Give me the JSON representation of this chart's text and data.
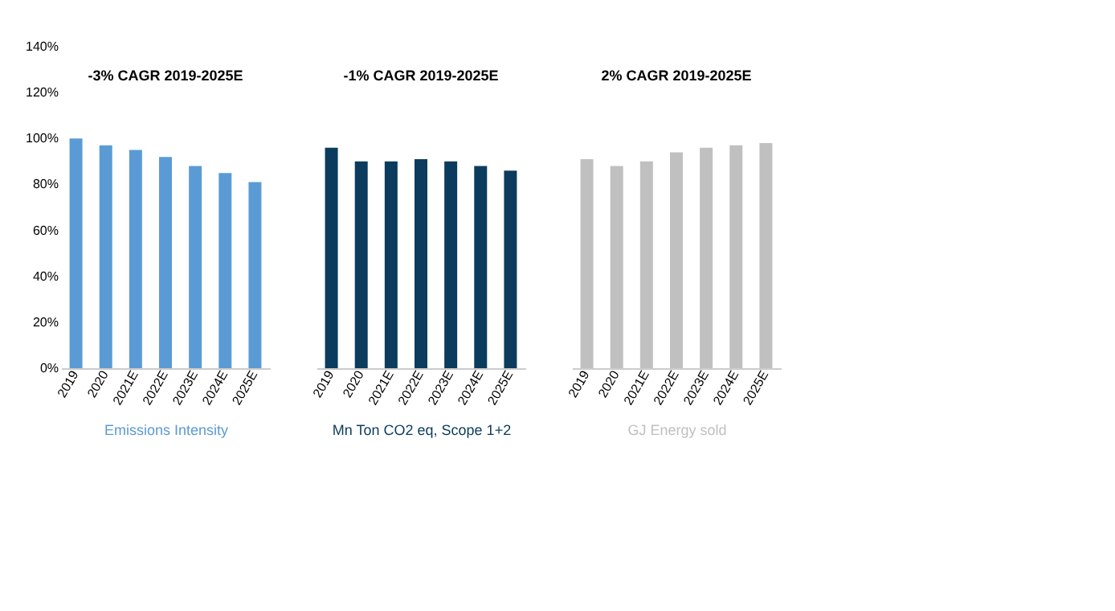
{
  "chart_data": [
    {
      "type": "bar",
      "xlabel": "Emissions Intensity",
      "annotations": [
        "-3% CAGR 2019-2025E"
      ],
      "categories": [
        "2019",
        "2020",
        "2021E",
        "2022E",
        "2023E",
        "2024E",
        "2025E"
      ],
      "series": [
        {
          "color": "#5b9bd5",
          "values": [
            100,
            97,
            95,
            92,
            88,
            85,
            81
          ]
        }
      ],
      "ylim": [
        0,
        140
      ],
      "yticks": [
        {
          "value": 0,
          "label": "0%"
        },
        {
          "value": 20,
          "label": "20%"
        },
        {
          "value": 40,
          "label": "40%"
        },
        {
          "value": 60,
          "label": "60%"
        },
        {
          "value": 80,
          "label": "80%"
        },
        {
          "value": 100,
          "label": "100%"
        },
        {
          "value": 120,
          "label": "120%"
        },
        {
          "value": 140,
          "label": "140%"
        }
      ],
      "grid": false
    },
    {
      "type": "bar",
      "xlabel": "Mn Ton CO2 eq, Scope 1+2",
      "annotations": [
        "-1% CAGR 2019-2025E"
      ],
      "categories": [
        "2019",
        "2020",
        "2021E",
        "2022E",
        "2023E",
        "2024E",
        "2025E"
      ],
      "series": [
        {
          "color": "#0b3c5d",
          "values": [
            96,
            90,
            90,
            91,
            90,
            88,
            86
          ]
        }
      ],
      "ylim": [
        0,
        140
      ],
      "tick_labels": "x",
      "grid": false
    },
    {
      "type": "bar",
      "xlabel": "GJ Energy sold",
      "annotations": [
        "2% CAGR 2019-2025E"
      ],
      "categories": [
        "2019",
        "2020",
        "2021E",
        "2022E",
        "2023E",
        "2024E",
        "2025E"
      ],
      "series": [
        {
          "color": "#c0c0c0",
          "values": [
            91,
            88,
            90,
            94,
            96,
            97,
            98
          ]
        }
      ],
      "ylim": [
        0,
        140
      ],
      "tick_labels": "x",
      "grid": false
    }
  ]
}
